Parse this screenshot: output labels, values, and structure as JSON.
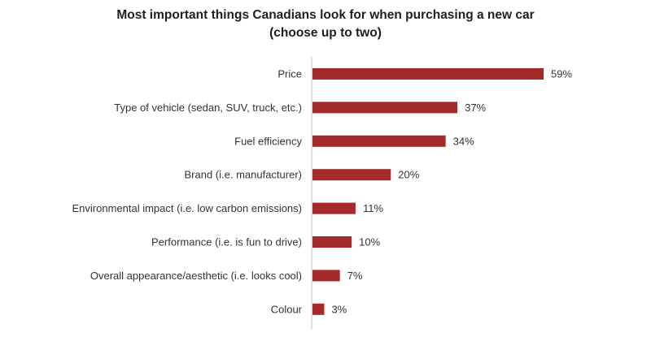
{
  "chart_data": {
    "type": "bar",
    "orientation": "horizontal",
    "title_line1": "Most important things Canadians look for when purchasing a new car",
    "title_line2": "(choose up to two)",
    "xlabel": "",
    "ylabel": "",
    "xlim": [
      0,
      59
    ],
    "grid": false,
    "legend": "none",
    "bar_color": "#a52a2a",
    "categories": [
      "Price",
      "Type of vehicle (sedan, SUV, truck, etc.)",
      "Fuel efficiency",
      "Brand (i.e. manufacturer)",
      "Environmental impact (i.e. low carbon emissions)",
      "Performance (i.e. is fun to drive)",
      "Overall appearance/aesthetic (i.e. looks cool)",
      "Colour"
    ],
    "values": [
      59,
      37,
      34,
      20,
      11,
      10,
      7,
      3
    ],
    "value_labels": [
      "59%",
      "37%",
      "34%",
      "20%",
      "11%",
      "10%",
      "7%",
      "3%"
    ]
  }
}
